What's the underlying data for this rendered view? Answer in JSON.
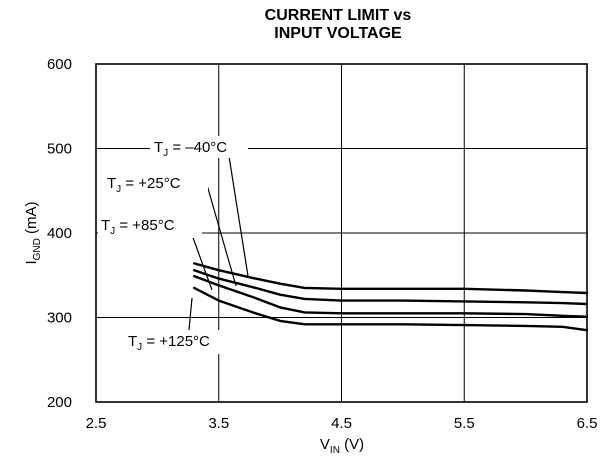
{
  "chart_data": {
    "type": "line",
    "title_lines": [
      "CURRENT LIMIT vs",
      "INPUT VOLTAGE"
    ],
    "xlabel": {
      "main": "V",
      "sub": "IN",
      "suffix": " (V)"
    },
    "ylabel": {
      "main": "I",
      "sub": "GND",
      "suffix": " (mA)"
    },
    "xlim": [
      2.5,
      6.5
    ],
    "ylim": [
      200,
      600
    ],
    "x_ticks": [
      "2.5",
      "3.5",
      "4.5",
      "5.5",
      "6.5"
    ],
    "y_ticks": [
      "200",
      "300",
      "400",
      "500",
      "600"
    ],
    "grid": true,
    "series": [
      {
        "name": "T_J = -40°C",
        "x": [
          3.3,
          3.5,
          3.8,
          4.0,
          4.2,
          4.5,
          5.0,
          5.5,
          6.0,
          6.3,
          6.5
        ],
        "y": [
          364,
          356,
          346,
          340,
          335,
          334,
          334,
          334,
          332,
          330,
          329
        ]
      },
      {
        "name": "T_J = +25°C",
        "x": [
          3.3,
          3.5,
          3.8,
          4.0,
          4.2,
          4.5,
          5.0,
          5.5,
          6.0,
          6.3,
          6.5
        ],
        "y": [
          356,
          346,
          335,
          327,
          322,
          320,
          320,
          319,
          318,
          317,
          316
        ]
      },
      {
        "name": "T_J = +85°C",
        "x": [
          3.3,
          3.5,
          3.8,
          4.0,
          4.2,
          4.5,
          5.0,
          5.5,
          6.0,
          6.3,
          6.5
        ],
        "y": [
          349,
          338,
          323,
          312,
          306,
          305,
          305,
          305,
          304,
          302,
          301
        ]
      },
      {
        "name": "T_J = +125°C",
        "x": [
          3.3,
          3.5,
          3.8,
          4.0,
          4.2,
          4.5,
          5.0,
          5.5,
          6.0,
          6.3,
          6.5
        ],
        "y": [
          335,
          320,
          305,
          296,
          292,
          292,
          292,
          291,
          290,
          289,
          285
        ]
      }
    ],
    "annotations": [
      {
        "main": "T",
        "sub": "J",
        "rest": " = –40°C"
      },
      {
        "main": "T",
        "sub": "J",
        "rest": " = +25°C"
      },
      {
        "main": "T",
        "sub": "J",
        "rest": " = +85°C"
      },
      {
        "main": "T",
        "sub": "J",
        "rest": " = +125°C"
      }
    ]
  }
}
